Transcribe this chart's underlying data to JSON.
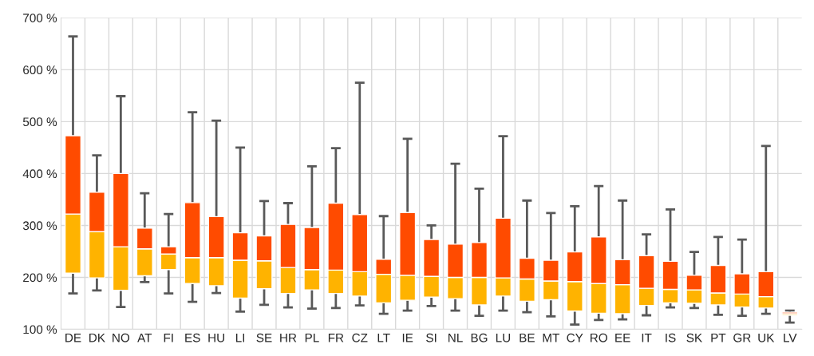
{
  "chart_data": {
    "type": "box",
    "categories": [
      "DE",
      "DK",
      "NO",
      "AT",
      "FI",
      "ES",
      "HU",
      "LI",
      "SE",
      "HR",
      "PL",
      "FR",
      "CZ",
      "LT",
      "IE",
      "SI",
      "NL",
      "BG",
      "LU",
      "BE",
      "MT",
      "CY",
      "RO",
      "EE",
      "IT",
      "IS",
      "SK",
      "PT",
      "GR",
      "UK",
      "LV"
    ],
    "boxes": [
      {
        "low": 169,
        "q1": 208,
        "median": 322,
        "q3": 473,
        "high": 664
      },
      {
        "low": 175,
        "q1": 199,
        "median": 288,
        "q3": 364,
        "high": 435
      },
      {
        "low": 143,
        "q1": 175,
        "median": 259,
        "q3": 400,
        "high": 549
      },
      {
        "low": 191,
        "q1": 203,
        "median": 255,
        "q3": 295,
        "high": 362
      },
      {
        "low": 169,
        "q1": 215,
        "median": 245,
        "q3": 259,
        "high": 322
      },
      {
        "low": 153,
        "q1": 188,
        "median": 238,
        "q3": 344,
        "high": 518
      },
      {
        "low": 170,
        "q1": 184,
        "median": 238,
        "q3": 317,
        "high": 502
      },
      {
        "low": 134,
        "q1": 160,
        "median": 233,
        "q3": 286,
        "high": 450
      },
      {
        "low": 147,
        "q1": 178,
        "median": 232,
        "q3": 280,
        "high": 347
      },
      {
        "low": 142,
        "q1": 169,
        "median": 219,
        "q3": 302,
        "high": 343
      },
      {
        "low": 140,
        "q1": 176,
        "median": 215,
        "q3": 296,
        "high": 414
      },
      {
        "low": 141,
        "q1": 169,
        "median": 214,
        "q3": 343,
        "high": 449
      },
      {
        "low": 146,
        "q1": 164,
        "median": 211,
        "q3": 321,
        "high": 575
      },
      {
        "low": 130,
        "q1": 151,
        "median": 206,
        "q3": 235,
        "high": 318
      },
      {
        "low": 136,
        "q1": 156,
        "median": 204,
        "q3": 325,
        "high": 467
      },
      {
        "low": 145,
        "q1": 162,
        "median": 202,
        "q3": 273,
        "high": 300
      },
      {
        "low": 136,
        "q1": 159,
        "median": 200,
        "q3": 264,
        "high": 419
      },
      {
        "low": 126,
        "q1": 147,
        "median": 200,
        "q3": 267,
        "high": 371
      },
      {
        "low": 136,
        "q1": 164,
        "median": 199,
        "q3": 314,
        "high": 472
      },
      {
        "low": 133,
        "q1": 154,
        "median": 197,
        "q3": 237,
        "high": 348
      },
      {
        "low": 125,
        "q1": 157,
        "median": 193,
        "q3": 233,
        "high": 324
      },
      {
        "low": 109,
        "q1": 135,
        "median": 192,
        "q3": 249,
        "high": 337
      },
      {
        "low": 118,
        "q1": 131,
        "median": 188,
        "q3": 278,
        "high": 376
      },
      {
        "low": 119,
        "q1": 130,
        "median": 186,
        "q3": 234,
        "high": 348
      },
      {
        "low": 127,
        "q1": 146,
        "median": 179,
        "q3": 242,
        "high": 283
      },
      {
        "low": 142,
        "q1": 151,
        "median": 177,
        "q3": 231,
        "high": 331
      },
      {
        "low": 141,
        "q1": 150,
        "median": 176,
        "q3": 204,
        "high": 249
      },
      {
        "low": 128,
        "q1": 147,
        "median": 170,
        "q3": 223,
        "high": 278
      },
      {
        "low": 126,
        "q1": 143,
        "median": 168,
        "q3": 207,
        "high": 273
      },
      {
        "low": 130,
        "q1": 141,
        "median": 163,
        "q3": 211,
        "high": 453
      },
      {
        "low": 113,
        "q1": 127,
        "median": 130,
        "q3": 133,
        "high": 136
      }
    ],
    "ylim": [
      100,
      700
    ],
    "yticks": [
      {
        "value": 100,
        "label": "100 %"
      },
      {
        "value": 200,
        "label": "200 %"
      },
      {
        "value": 300,
        "label": "300 %"
      },
      {
        "value": 400,
        "label": "400 %"
      },
      {
        "value": 500,
        "label": "500 %"
      },
      {
        "value": 600,
        "label": "600 %"
      },
      {
        "value": 700,
        "label": "700 %"
      }
    ],
    "grid": true
  }
}
